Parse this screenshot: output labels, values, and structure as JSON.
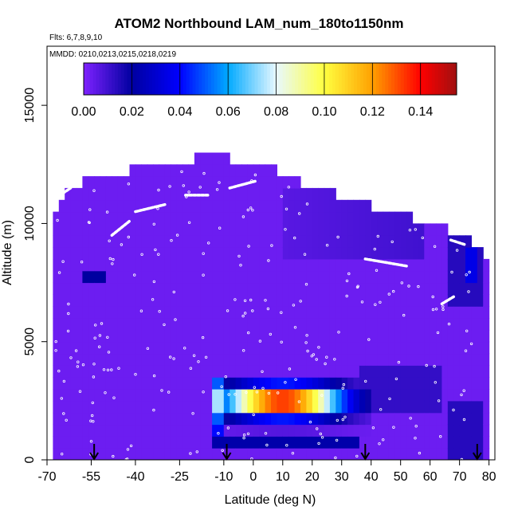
{
  "chart_data": {
    "type": "heatmap",
    "title": "ATOM2 Northbound LAM_num_180to1150nm",
    "flights": "Flts: 6,7,8,9,10",
    "mmdd": "MMDD: 0210,0213,0215,0218,0219",
    "xlabel": "Latitude (deg N)",
    "ylabel": "Altitude (m)",
    "xlim": [
      -70,
      82
    ],
    "ylim": [
      0,
      17500
    ],
    "xticks": [
      -70,
      -55,
      -40,
      -25,
      -10,
      0,
      10,
      20,
      30,
      40,
      50,
      60,
      70,
      80
    ],
    "xticklabels": [
      "-70",
      "-55",
      "-40",
      "-25",
      "-10",
      "0",
      "10",
      "20",
      "30",
      "40",
      "50",
      "60",
      "70",
      "80"
    ],
    "yticks": [
      0,
      5000,
      10000,
      15000
    ],
    "yticklabels": [
      "0",
      "5000",
      "10000",
      "15000"
    ],
    "colorbar": {
      "range": [
        0,
        0.155
      ],
      "ticks": [
        0.0,
        0.02,
        0.04,
        0.06,
        0.08,
        0.1,
        0.12,
        0.14
      ],
      "ticklabels": [
        "0.00",
        "0.02",
        "0.04",
        "0.06",
        "0.08",
        "0.10",
        "0.12",
        "0.14"
      ],
      "palette": [
        "#7f22ff",
        "#0000a0",
        "#0000ff",
        "#00aaff",
        "#e8f8ff",
        "#ffff40",
        "#ffa000",
        "#ff0000",
        "#a01010"
      ]
    },
    "profile_arrows_lat": [
      -54,
      -9,
      38,
      76
    ],
    "value_description": "Mostly low (about 0.00-0.01) everywhere; plume of 0.06-0.15 between -15 and 40 deg N at 1000-3500 m, peak near -5 to 20 deg N around 2500 m.",
    "grid": false,
    "legend": "colorbar top"
  }
}
